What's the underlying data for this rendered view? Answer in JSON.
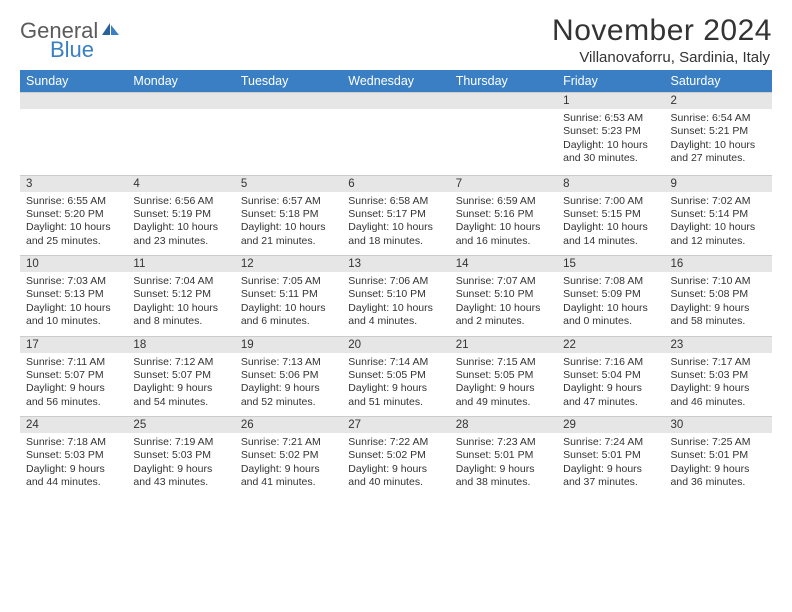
{
  "logo": {
    "gray": "General",
    "blue": "Blue"
  },
  "title": "November 2024",
  "location": "Villanovaforru, Sardinia, Italy",
  "colors": {
    "header_bg": "#3a7fc4",
    "header_fg": "#ffffff",
    "daynum_bg": "#e6e6e6",
    "text": "#333333",
    "logo_gray": "#5b5b5b",
    "logo_blue": "#3a7fc4",
    "page_bg": "#ffffff"
  },
  "day_names": [
    "Sunday",
    "Monday",
    "Tuesday",
    "Wednesday",
    "Thursday",
    "Friday",
    "Saturday"
  ],
  "weeks": [
    [
      {
        "n": "",
        "sr": "",
        "ss": "",
        "d1": "",
        "d2": ""
      },
      {
        "n": "",
        "sr": "",
        "ss": "",
        "d1": "",
        "d2": ""
      },
      {
        "n": "",
        "sr": "",
        "ss": "",
        "d1": "",
        "d2": ""
      },
      {
        "n": "",
        "sr": "",
        "ss": "",
        "d1": "",
        "d2": ""
      },
      {
        "n": "",
        "sr": "",
        "ss": "",
        "d1": "",
        "d2": ""
      },
      {
        "n": "1",
        "sr": "Sunrise: 6:53 AM",
        "ss": "Sunset: 5:23 PM",
        "d1": "Daylight: 10 hours",
        "d2": "and 30 minutes."
      },
      {
        "n": "2",
        "sr": "Sunrise: 6:54 AM",
        "ss": "Sunset: 5:21 PM",
        "d1": "Daylight: 10 hours",
        "d2": "and 27 minutes."
      }
    ],
    [
      {
        "n": "3",
        "sr": "Sunrise: 6:55 AM",
        "ss": "Sunset: 5:20 PM",
        "d1": "Daylight: 10 hours",
        "d2": "and 25 minutes."
      },
      {
        "n": "4",
        "sr": "Sunrise: 6:56 AM",
        "ss": "Sunset: 5:19 PM",
        "d1": "Daylight: 10 hours",
        "d2": "and 23 minutes."
      },
      {
        "n": "5",
        "sr": "Sunrise: 6:57 AM",
        "ss": "Sunset: 5:18 PM",
        "d1": "Daylight: 10 hours",
        "d2": "and 21 minutes."
      },
      {
        "n": "6",
        "sr": "Sunrise: 6:58 AM",
        "ss": "Sunset: 5:17 PM",
        "d1": "Daylight: 10 hours",
        "d2": "and 18 minutes."
      },
      {
        "n": "7",
        "sr": "Sunrise: 6:59 AM",
        "ss": "Sunset: 5:16 PM",
        "d1": "Daylight: 10 hours",
        "d2": "and 16 minutes."
      },
      {
        "n": "8",
        "sr": "Sunrise: 7:00 AM",
        "ss": "Sunset: 5:15 PM",
        "d1": "Daylight: 10 hours",
        "d2": "and 14 minutes."
      },
      {
        "n": "9",
        "sr": "Sunrise: 7:02 AM",
        "ss": "Sunset: 5:14 PM",
        "d1": "Daylight: 10 hours",
        "d2": "and 12 minutes."
      }
    ],
    [
      {
        "n": "10",
        "sr": "Sunrise: 7:03 AM",
        "ss": "Sunset: 5:13 PM",
        "d1": "Daylight: 10 hours",
        "d2": "and 10 minutes."
      },
      {
        "n": "11",
        "sr": "Sunrise: 7:04 AM",
        "ss": "Sunset: 5:12 PM",
        "d1": "Daylight: 10 hours",
        "d2": "and 8 minutes."
      },
      {
        "n": "12",
        "sr": "Sunrise: 7:05 AM",
        "ss": "Sunset: 5:11 PM",
        "d1": "Daylight: 10 hours",
        "d2": "and 6 minutes."
      },
      {
        "n": "13",
        "sr": "Sunrise: 7:06 AM",
        "ss": "Sunset: 5:10 PM",
        "d1": "Daylight: 10 hours",
        "d2": "and 4 minutes."
      },
      {
        "n": "14",
        "sr": "Sunrise: 7:07 AM",
        "ss": "Sunset: 5:10 PM",
        "d1": "Daylight: 10 hours",
        "d2": "and 2 minutes."
      },
      {
        "n": "15",
        "sr": "Sunrise: 7:08 AM",
        "ss": "Sunset: 5:09 PM",
        "d1": "Daylight: 10 hours",
        "d2": "and 0 minutes."
      },
      {
        "n": "16",
        "sr": "Sunrise: 7:10 AM",
        "ss": "Sunset: 5:08 PM",
        "d1": "Daylight: 9 hours",
        "d2": "and 58 minutes."
      }
    ],
    [
      {
        "n": "17",
        "sr": "Sunrise: 7:11 AM",
        "ss": "Sunset: 5:07 PM",
        "d1": "Daylight: 9 hours",
        "d2": "and 56 minutes."
      },
      {
        "n": "18",
        "sr": "Sunrise: 7:12 AM",
        "ss": "Sunset: 5:07 PM",
        "d1": "Daylight: 9 hours",
        "d2": "and 54 minutes."
      },
      {
        "n": "19",
        "sr": "Sunrise: 7:13 AM",
        "ss": "Sunset: 5:06 PM",
        "d1": "Daylight: 9 hours",
        "d2": "and 52 minutes."
      },
      {
        "n": "20",
        "sr": "Sunrise: 7:14 AM",
        "ss": "Sunset: 5:05 PM",
        "d1": "Daylight: 9 hours",
        "d2": "and 51 minutes."
      },
      {
        "n": "21",
        "sr": "Sunrise: 7:15 AM",
        "ss": "Sunset: 5:05 PM",
        "d1": "Daylight: 9 hours",
        "d2": "and 49 minutes."
      },
      {
        "n": "22",
        "sr": "Sunrise: 7:16 AM",
        "ss": "Sunset: 5:04 PM",
        "d1": "Daylight: 9 hours",
        "d2": "and 47 minutes."
      },
      {
        "n": "23",
        "sr": "Sunrise: 7:17 AM",
        "ss": "Sunset: 5:03 PM",
        "d1": "Daylight: 9 hours",
        "d2": "and 46 minutes."
      }
    ],
    [
      {
        "n": "24",
        "sr": "Sunrise: 7:18 AM",
        "ss": "Sunset: 5:03 PM",
        "d1": "Daylight: 9 hours",
        "d2": "and 44 minutes."
      },
      {
        "n": "25",
        "sr": "Sunrise: 7:19 AM",
        "ss": "Sunset: 5:03 PM",
        "d1": "Daylight: 9 hours",
        "d2": "and 43 minutes."
      },
      {
        "n": "26",
        "sr": "Sunrise: 7:21 AM",
        "ss": "Sunset: 5:02 PM",
        "d1": "Daylight: 9 hours",
        "d2": "and 41 minutes."
      },
      {
        "n": "27",
        "sr": "Sunrise: 7:22 AM",
        "ss": "Sunset: 5:02 PM",
        "d1": "Daylight: 9 hours",
        "d2": "and 40 minutes."
      },
      {
        "n": "28",
        "sr": "Sunrise: 7:23 AM",
        "ss": "Sunset: 5:01 PM",
        "d1": "Daylight: 9 hours",
        "d2": "and 38 minutes."
      },
      {
        "n": "29",
        "sr": "Sunrise: 7:24 AM",
        "ss": "Sunset: 5:01 PM",
        "d1": "Daylight: 9 hours",
        "d2": "and 37 minutes."
      },
      {
        "n": "30",
        "sr": "Sunrise: 7:25 AM",
        "ss": "Sunset: 5:01 PM",
        "d1": "Daylight: 9 hours",
        "d2": "and 36 minutes."
      }
    ]
  ]
}
